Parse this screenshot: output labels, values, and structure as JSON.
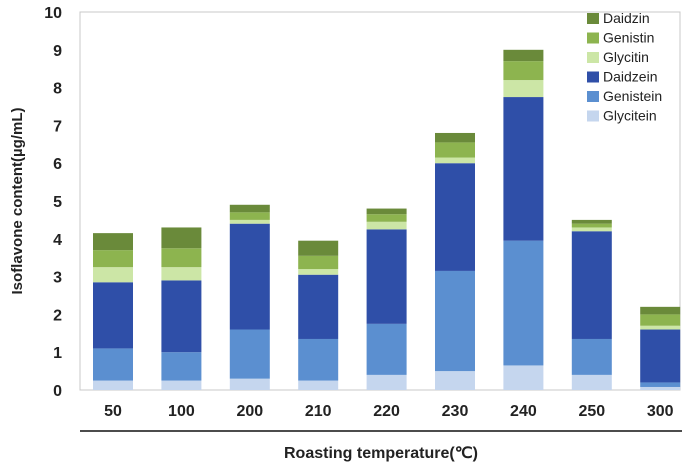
{
  "chart_data": {
    "type": "bar",
    "stacked": true,
    "xlabel": "Roasting temperature(℃)",
    "ylabel": "Isoflavone content(µg/mL)",
    "ylim": [
      0,
      10
    ],
    "yticks": [
      "0",
      "1",
      "2",
      "3",
      "4",
      "5",
      "6",
      "7",
      "8",
      "9",
      "10"
    ],
    "categories": [
      "50",
      "100",
      "200",
      "210",
      "220",
      "230",
      "240",
      "250",
      "300"
    ],
    "legend_position": "top-right",
    "grid": false,
    "series": [
      {
        "name": "Glycitein",
        "color": "#c5d6ee",
        "values": [
          0.25,
          0.25,
          0.3,
          0.25,
          0.4,
          0.5,
          0.65,
          0.4,
          0.08
        ]
      },
      {
        "name": "Genistein",
        "color": "#5b8fd0",
        "values": [
          0.85,
          0.75,
          1.3,
          1.1,
          1.35,
          2.65,
          3.3,
          0.95,
          0.12
        ]
      },
      {
        "name": "Daidzein",
        "color": "#2f4fa8",
        "values": [
          1.75,
          1.9,
          2.8,
          1.7,
          2.5,
          2.85,
          3.8,
          2.85,
          1.4
        ]
      },
      {
        "name": "Glycitin",
        "color": "#cce6a6",
        "values": [
          0.4,
          0.35,
          0.1,
          0.15,
          0.2,
          0.15,
          0.45,
          0.1,
          0.1
        ]
      },
      {
        "name": "Genistin",
        "color": "#8db44f",
        "values": [
          0.45,
          0.5,
          0.2,
          0.35,
          0.2,
          0.4,
          0.5,
          0.1,
          0.3
        ]
      },
      {
        "name": "Daidzin",
        "color": "#6a8a3a",
        "values": [
          0.45,
          0.55,
          0.2,
          0.4,
          0.15,
          0.25,
          0.3,
          0.1,
          0.2
        ]
      }
    ],
    "legend_order": [
      "Daidzin",
      "Genistin",
      "Glycitin",
      "Daidzein",
      "Genistein",
      "Glycitein"
    ]
  }
}
